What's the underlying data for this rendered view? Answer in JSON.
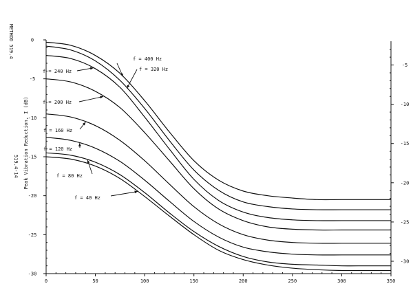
{
  "chart_data": {
    "type": "line",
    "title": "",
    "side_label": "METHOD 519.4",
    "figure_number": "519.4-14",
    "ylabel": "Peak Vibration Reduction, I (dB)",
    "xlabel": "",
    "xlim": [
      0,
      350
    ],
    "ylim": [
      -30,
      0
    ],
    "right_ylim": [
      -30,
      -2.5
    ],
    "x_ticks": [
      0,
      50,
      100,
      150,
      200,
      250,
      300,
      350
    ],
    "x_tick_labels": [
      "0",
      "50",
      "100",
      "150",
      "200",
      "250",
      "300",
      "350"
    ],
    "y_ticks": [
      0,
      -5,
      -10,
      -15,
      -20,
      -25,
      -30
    ],
    "y_tick_labels": [
      "0",
      "-5",
      "-10",
      "-15",
      "-20",
      "-25",
      "-30"
    ],
    "right_y_ticks": [
      -5,
      -10,
      -15,
      -20,
      -25,
      -30
    ],
    "right_y_tick_labels": [
      "-5",
      "-10",
      "-15",
      "-20",
      "-25",
      "-30"
    ],
    "grid": false,
    "series": [
      {
        "name": "f = 400 Hz",
        "x": [
          0,
          25,
          50,
          75,
          100,
          125,
          150,
          175,
          200,
          225,
          250,
          275,
          300,
          325,
          350
        ],
        "y": [
          -0.3,
          -0.7,
          -2.0,
          -4.3,
          -7.8,
          -11.8,
          -15.5,
          -18.0,
          -19.4,
          -20.0,
          -20.3,
          -20.5,
          -20.5,
          -20.5,
          -20.5
        ]
      },
      {
        "name": "f = 320 Hz",
        "x": [
          0,
          25,
          50,
          75,
          100,
          125,
          150,
          175,
          200,
          225,
          250,
          275,
          300,
          325,
          350
        ],
        "y": [
          -0.8,
          -1.3,
          -2.7,
          -5.2,
          -8.8,
          -12.9,
          -16.7,
          -19.3,
          -20.8,
          -21.4,
          -21.7,
          -21.8,
          -21.8,
          -21.8,
          -21.8
        ]
      },
      {
        "name": "f = 240 Hz",
        "x": [
          0,
          25,
          50,
          75,
          100,
          125,
          150,
          175,
          200,
          225,
          250,
          275,
          300,
          325,
          350
        ],
        "y": [
          -2.0,
          -2.4,
          -3.7,
          -6.1,
          -9.9,
          -14.0,
          -17.9,
          -20.6,
          -22.1,
          -22.8,
          -23.1,
          -23.2,
          -23.2,
          -23.2,
          -23.2
        ]
      },
      {
        "name": "f = 200 Hz",
        "x": [
          0,
          25,
          50,
          75,
          100,
          125,
          150,
          175,
          200,
          225,
          250,
          275,
          300,
          325,
          350
        ],
        "y": [
          -5.0,
          -5.4,
          -6.6,
          -8.7,
          -11.9,
          -15.5,
          -19.1,
          -21.7,
          -23.2,
          -24.0,
          -24.3,
          -24.4,
          -24.4,
          -24.4,
          -24.4
        ]
      },
      {
        "name": "f = 160 Hz",
        "x": [
          0,
          25,
          50,
          75,
          100,
          125,
          150,
          175,
          200,
          225,
          250,
          275,
          300,
          325,
          350
        ],
        "y": [
          -9.5,
          -9.9,
          -11.0,
          -12.9,
          -15.5,
          -18.5,
          -21.4,
          -23.6,
          -25.0,
          -25.7,
          -26.0,
          -26.1,
          -26.1,
          -26.1,
          -26.1
        ]
      },
      {
        "name": "f = 120 Hz",
        "x": [
          0,
          25,
          50,
          75,
          100,
          125,
          150,
          175,
          200,
          225,
          250,
          275,
          300,
          325,
          350
        ],
        "y": [
          -12.5,
          -12.9,
          -13.9,
          -15.6,
          -18.0,
          -20.7,
          -23.3,
          -25.3,
          -26.6,
          -27.2,
          -27.5,
          -27.6,
          -27.6,
          -27.6,
          -27.6
        ]
      },
      {
        "name": "f = 80 Hz",
        "x": [
          0,
          25,
          50,
          75,
          100,
          125,
          150,
          175,
          200,
          225,
          250,
          275,
          300,
          325,
          350
        ],
        "y": [
          -14.5,
          -14.8,
          -15.7,
          -17.3,
          -19.6,
          -22.2,
          -24.6,
          -26.5,
          -27.8,
          -28.5,
          -28.8,
          -28.9,
          -29.0,
          -29.0,
          -29.0
        ]
      },
      {
        "name": "f = 40 Hz",
        "x": [
          0,
          25,
          50,
          75,
          100,
          125,
          150,
          175,
          200,
          225,
          250,
          275,
          300,
          325,
          350
        ],
        "y": [
          -15.0,
          -15.3,
          -16.2,
          -17.8,
          -20.1,
          -22.6,
          -25.0,
          -27.0,
          -28.2,
          -28.9,
          -29.3,
          -29.5,
          -29.6,
          -29.6,
          -29.6
        ]
      }
    ],
    "annotations": [
      {
        "series": "f = 400 Hz",
        "text": "f = 400 Hz"
      },
      {
        "series": "f = 320 Hz",
        "text": "f = 320 Hz"
      },
      {
        "series": "f = 240 Hz",
        "text": "f = 240 Hz"
      },
      {
        "series": "f = 200 Hz",
        "text": "f = 200 Hz"
      },
      {
        "series": "f = 160 Hz",
        "text": "f = 160 Hz"
      },
      {
        "series": "f = 120 Hz",
        "text": "f = 120 Hz"
      },
      {
        "series": "f = 80 Hz",
        "text": "f = 80 Hz"
      },
      {
        "series": "f = 40 Hz",
        "text": "f = 40 Hz"
      }
    ]
  }
}
